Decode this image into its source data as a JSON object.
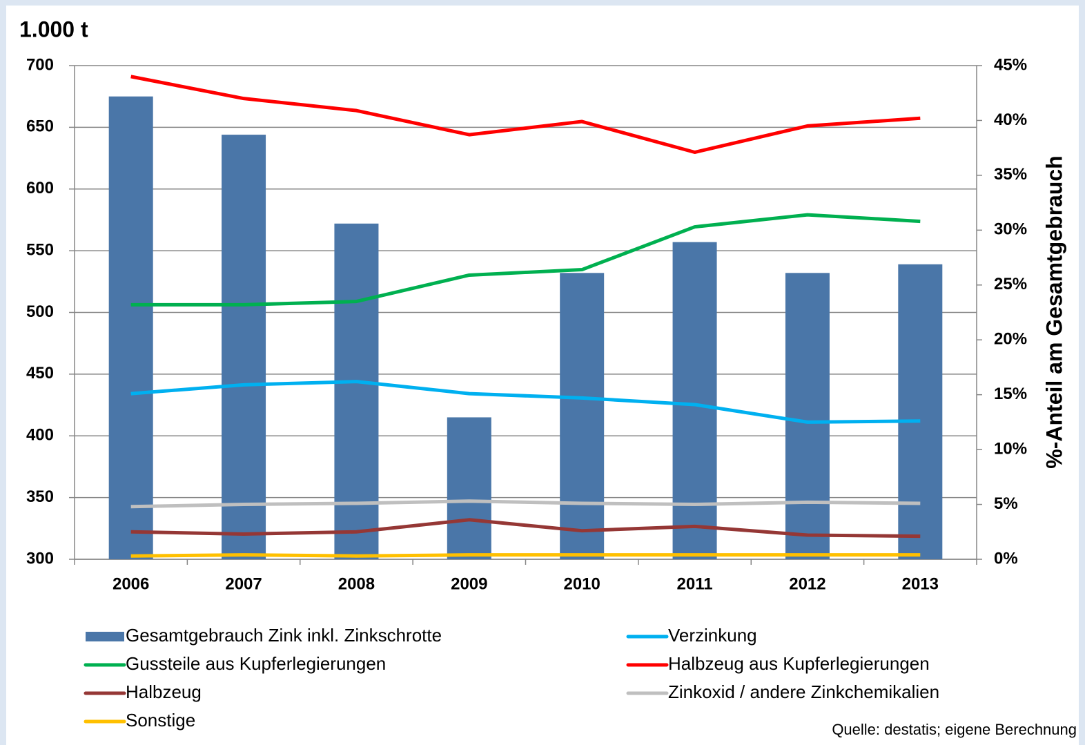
{
  "chart_data": {
    "type": "combo",
    "title": "1.000 t",
    "y2_label": "%-Anteil am Gesamtgebrauch",
    "source": "Quelle: destatis; eigene Berechnung",
    "categories": [
      "2006",
      "2007",
      "2008",
      "2009",
      "2010",
      "2011",
      "2012",
      "2013"
    ],
    "ylim": [
      300,
      700
    ],
    "yticks": [
      300,
      350,
      400,
      450,
      500,
      550,
      600,
      650,
      700
    ],
    "y2lim": [
      0,
      45
    ],
    "y2ticks": [
      {
        "value": 0,
        "label": "0%"
      },
      {
        "value": 5,
        "label": "5%"
      },
      {
        "value": 10,
        "label": "10%"
      },
      {
        "value": 15,
        "label": "15%"
      },
      {
        "value": 20,
        "label": "20%"
      },
      {
        "value": 25,
        "label": "25%"
      },
      {
        "value": 30,
        "label": "30%"
      },
      {
        "value": 35,
        "label": "35%"
      },
      {
        "value": 40,
        "label": "40%"
      },
      {
        "value": 45,
        "label": "45%"
      }
    ],
    "grid": true,
    "series": [
      {
        "name": "Gesamtgebrauch Zink inkl. Zinkschrotte",
        "type": "bar",
        "color": "#4a76a8",
        "values": [
          675,
          644,
          572,
          415,
          532,
          557,
          532,
          539
        ]
      },
      {
        "name": "Verzinkung",
        "type": "line",
        "axis": "y2",
        "color": "#00b0f0",
        "values": [
          15.1,
          15.9,
          16.2,
          15.1,
          14.7,
          14.1,
          12.5,
          12.6
        ]
      },
      {
        "name": "Gussteile aus Kupferlegierungen",
        "type": "line",
        "axis": "y2",
        "color": "#00b050",
        "values": [
          23.2,
          23.2,
          23.5,
          25.9,
          26.4,
          30.3,
          31.4,
          30.8
        ]
      },
      {
        "name": "Halbzeug aus Kupferlegierungen",
        "type": "line",
        "axis": "y2",
        "color": "#ff0000",
        "values": [
          44.0,
          42.0,
          40.9,
          38.7,
          39.9,
          37.1,
          39.5,
          40.2
        ]
      },
      {
        "name": "Halbzeug",
        "type": "line",
        "axis": "y2",
        "color": "#953735",
        "values": [
          2.5,
          2.3,
          2.5,
          3.6,
          2.6,
          3.0,
          2.2,
          2.1
        ]
      },
      {
        "name": "Zinkoxid / andere Zinkchemikalien",
        "type": "line",
        "axis": "y2",
        "color": "#bfbfbf",
        "values": [
          4.8,
          5.0,
          5.1,
          5.3,
          5.1,
          5.0,
          5.2,
          5.1
        ]
      },
      {
        "name": "Sonstige",
        "type": "line",
        "axis": "y2",
        "color": "#ffc000",
        "values": [
          0.3,
          0.4,
          0.3,
          0.4,
          0.4,
          0.4,
          0.4,
          0.4
        ]
      }
    ]
  }
}
